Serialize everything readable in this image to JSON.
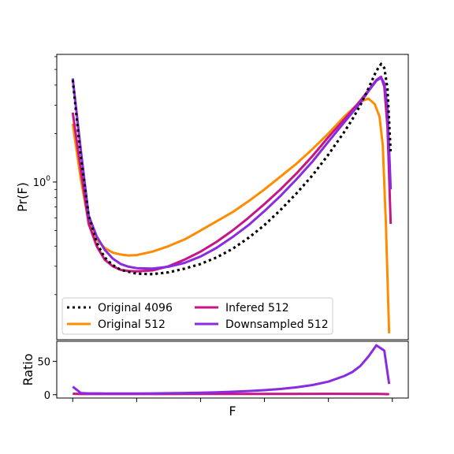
{
  "chart_data": [
    {
      "type": "line",
      "panel": "main",
      "xlabel": "",
      "ylabel": "Pr(F)",
      "yscale": "log",
      "xlim": [
        -0.05,
        1.05
      ],
      "ylim": [
        0.105,
        6.2
      ],
      "yticks": [
        {
          "value": 1.0,
          "label": "10",
          "exp": "0"
        }
      ],
      "legend": {
        "placement": "lower-left",
        "ncol": 2
      },
      "series": [
        {
          "name": "Original 4096",
          "color": "#000000",
          "style": "dotted",
          "x": [
            0.0,
            0.025,
            0.05,
            0.075,
            0.1,
            0.125,
            0.15,
            0.2,
            0.25,
            0.3,
            0.35,
            0.4,
            0.45,
            0.5,
            0.55,
            0.6,
            0.65,
            0.7,
            0.75,
            0.8,
            0.85,
            0.875,
            0.9,
            0.925,
            0.95,
            0.965,
            0.975,
            0.985,
            0.995
          ],
          "y": [
            4.3,
            1.45,
            0.62,
            0.42,
            0.34,
            0.305,
            0.285,
            0.27,
            0.268,
            0.275,
            0.29,
            0.31,
            0.34,
            0.385,
            0.45,
            0.54,
            0.67,
            0.85,
            1.1,
            1.48,
            2.05,
            2.45,
            3.0,
            3.8,
            4.9,
            5.4,
            5.1,
            3.8,
            1.5
          ]
        },
        {
          "name": "Original 512",
          "color": "#ff8c00",
          "style": "solid",
          "x": [
            0.0,
            0.025,
            0.05,
            0.075,
            0.1,
            0.125,
            0.15,
            0.175,
            0.2,
            0.25,
            0.3,
            0.35,
            0.4,
            0.45,
            0.5,
            0.55,
            0.6,
            0.65,
            0.7,
            0.75,
            0.8,
            0.85,
            0.9,
            0.925,
            0.945,
            0.96,
            0.97,
            0.98,
            0.99
          ],
          "y": [
            2.3,
            1.05,
            0.56,
            0.44,
            0.39,
            0.365,
            0.355,
            0.35,
            0.352,
            0.37,
            0.4,
            0.44,
            0.5,
            0.57,
            0.65,
            0.76,
            0.9,
            1.08,
            1.3,
            1.6,
            2.0,
            2.55,
            3.15,
            3.3,
            3.05,
            2.55,
            1.7,
            0.55,
            0.115
          ]
        },
        {
          "name": "Infered 512",
          "color": "#c71585",
          "style": "solid",
          "x": [
            0.0,
            0.025,
            0.05,
            0.075,
            0.1,
            0.125,
            0.15,
            0.175,
            0.2,
            0.25,
            0.3,
            0.35,
            0.4,
            0.45,
            0.5,
            0.55,
            0.6,
            0.65,
            0.7,
            0.75,
            0.8,
            0.85,
            0.9,
            0.925,
            0.95,
            0.965,
            0.975,
            0.985,
            0.995
          ],
          "y": [
            2.7,
            1.2,
            0.55,
            0.4,
            0.33,
            0.3,
            0.285,
            0.28,
            0.279,
            0.283,
            0.3,
            0.33,
            0.37,
            0.425,
            0.5,
            0.6,
            0.73,
            0.9,
            1.13,
            1.45,
            1.9,
            2.45,
            3.2,
            3.7,
            4.3,
            4.5,
            3.9,
            2.2,
            0.55
          ]
        },
        {
          "name": "Downsampled 512",
          "color": "#8a2be2",
          "style": "solid",
          "x": [
            0.0,
            0.025,
            0.05,
            0.075,
            0.1,
            0.125,
            0.15,
            0.175,
            0.2,
            0.25,
            0.3,
            0.35,
            0.4,
            0.45,
            0.5,
            0.55,
            0.6,
            0.65,
            0.7,
            0.75,
            0.8,
            0.85,
            0.9,
            0.925,
            0.95,
            0.965,
            0.975,
            0.985,
            0.995
          ],
          "y": [
            4.4,
            1.6,
            0.62,
            0.46,
            0.38,
            0.335,
            0.31,
            0.298,
            0.292,
            0.29,
            0.298,
            0.315,
            0.345,
            0.39,
            0.455,
            0.54,
            0.66,
            0.82,
            1.04,
            1.34,
            1.78,
            2.35,
            3.1,
            3.65,
            4.25,
            4.45,
            4.1,
            2.9,
            0.9
          ]
        }
      ]
    },
    {
      "type": "line",
      "panel": "ratio",
      "xlabel": "F",
      "ylabel": "Ratio",
      "xlim": [
        -0.05,
        1.05
      ],
      "ylim": [
        -5,
        80
      ],
      "yticks": [
        {
          "value": 0,
          "label": "0"
        },
        {
          "value": 50,
          "label": "50"
        }
      ],
      "xticks": [
        0.0,
        0.2,
        0.4,
        0.6,
        0.8,
        1.0
      ],
      "series": [
        {
          "name": "Infered 512",
          "color": "#c71585",
          "x": [
            0.0,
            0.025,
            0.05,
            0.1,
            0.2,
            0.3,
            0.4,
            0.5,
            0.6,
            0.7,
            0.8,
            0.9,
            0.95,
            0.97,
            0.99
          ],
          "y": [
            1.5,
            1.0,
            1.0,
            1.0,
            1.0,
            1.0,
            1.1,
            1.1,
            1.2,
            1.3,
            1.4,
            1.3,
            1.2,
            1.0,
            0.8
          ]
        },
        {
          "name": "Downsampled 512",
          "color": "#8a2be2",
          "x": [
            0.0,
            0.025,
            0.05,
            0.1,
            0.15,
            0.2,
            0.25,
            0.3,
            0.35,
            0.4,
            0.45,
            0.5,
            0.55,
            0.6,
            0.65,
            0.7,
            0.75,
            0.8,
            0.85,
            0.875,
            0.9,
            0.925,
            0.95,
            0.975,
            0.99
          ],
          "y": [
            12,
            2.5,
            2.0,
            1.8,
            1.8,
            1.9,
            2.0,
            2.2,
            2.5,
            3.0,
            3.6,
            4.4,
            5.5,
            6.8,
            8.6,
            11.0,
            14.5,
            19.5,
            28.0,
            34.0,
            43.0,
            57.0,
            74.0,
            66.0,
            16.0
          ]
        }
      ]
    }
  ]
}
